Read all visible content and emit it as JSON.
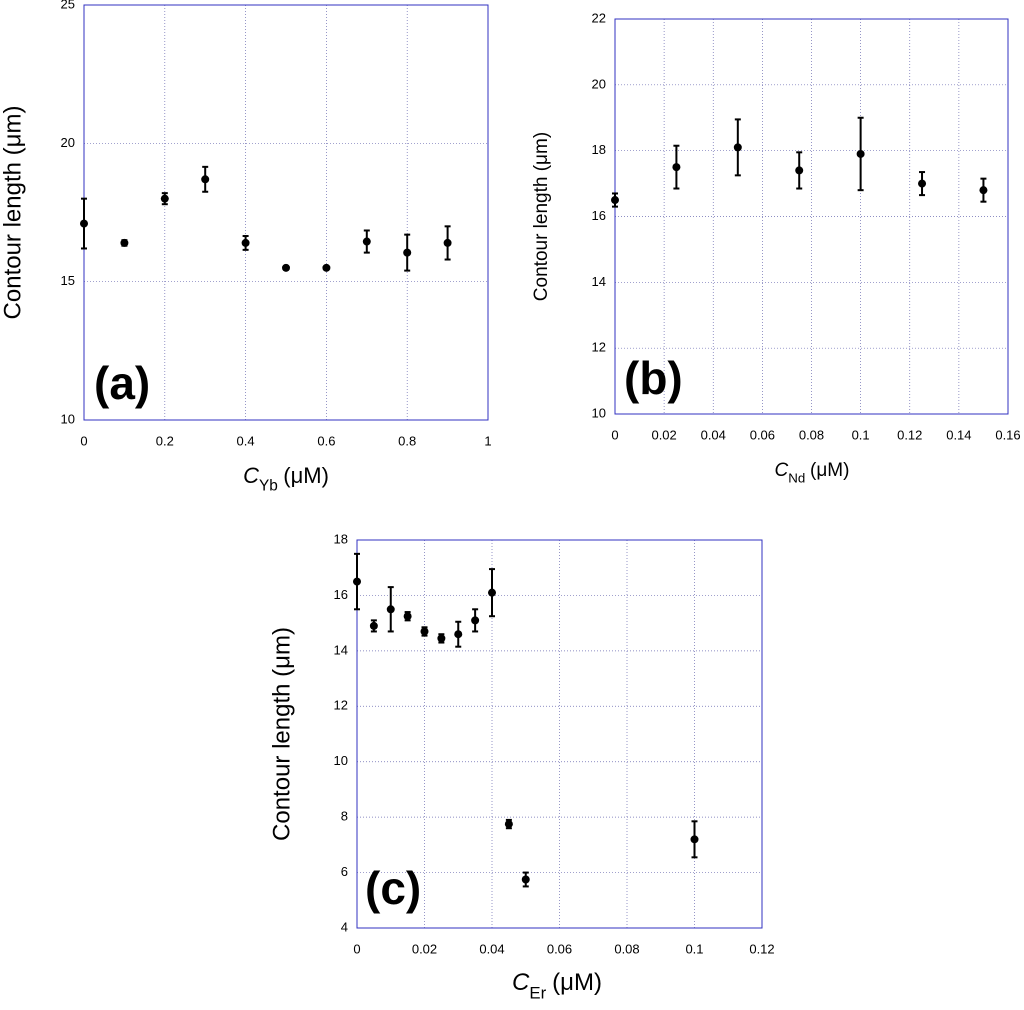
{
  "chart_data": [
    {
      "type": "errorscatter",
      "panel_label": "(a)",
      "ylabel": "Contour length (μm)",
      "xlabel": {
        "symbol": "C",
        "subscript": "Yb",
        "unit": "(μM)"
      },
      "x": [
        0,
        0.1,
        0.2,
        0.3,
        0.4,
        0.5,
        0.6,
        0.7,
        0.8,
        0.9
      ],
      "values": [
        17.1,
        16.4,
        18.0,
        18.7,
        16.4,
        15.5,
        15.5,
        16.45,
        16.05,
        16.4
      ],
      "errors": [
        0.9,
        0.1,
        0.2,
        0.45,
        0.25,
        0,
        0,
        0.4,
        0.65,
        0.6
      ],
      "color": "#000000",
      "xlim": [
        0,
        1
      ],
      "xticks": [
        0,
        0.2,
        0.4,
        0.6,
        0.8,
        1
      ],
      "ylim": [
        10,
        25
      ],
      "yticks": [
        10,
        15,
        20,
        25
      ],
      "grid": true
    },
    {
      "type": "errorscatter",
      "panel_label": "(b)",
      "ylabel": "Contour length (μm)",
      "xlabel": {
        "symbol": "C",
        "subscript": "Nd",
        "unit": "(μM)"
      },
      "x": [
        0,
        0.025,
        0.05,
        0.075,
        0.1,
        0.125,
        0.15
      ],
      "values": [
        16.5,
        17.5,
        18.1,
        17.4,
        17.9,
        17.0,
        16.8
      ],
      "errors": [
        0.2,
        0.65,
        0.85,
        0.55,
        1.1,
        0.35,
        0.35
      ],
      "color": "#000000",
      "xlim": [
        0,
        0.16
      ],
      "xticks": [
        0,
        0.02,
        0.04,
        0.06,
        0.08,
        0.1,
        0.12,
        0.14,
        0.16
      ],
      "ylim": [
        10,
        22
      ],
      "yticks": [
        10,
        12,
        14,
        16,
        18,
        20,
        22
      ],
      "grid": true
    },
    {
      "type": "errorscatter",
      "panel_label": "(c)",
      "ylabel": "Contour length (μm)",
      "xlabel": {
        "symbol": "C",
        "subscript": "Er",
        "unit": "(μM)"
      },
      "x": [
        0,
        0.005,
        0.01,
        0.015,
        0.02,
        0.025,
        0.03,
        0.035,
        0.04,
        0.045,
        0.05,
        0.1
      ],
      "values": [
        16.5,
        14.9,
        15.5,
        15.25,
        14.7,
        14.45,
        14.6,
        15.1,
        16.1,
        7.75,
        5.75,
        7.2
      ],
      "errors": [
        1.0,
        0.2,
        0.8,
        0.15,
        0.15,
        0.15,
        0.45,
        0.4,
        0.85,
        0.15,
        0.25,
        0.65
      ],
      "color": "#000000",
      "xlim": [
        0,
        0.12
      ],
      "xticks": [
        0,
        0.02,
        0.04,
        0.06,
        0.08,
        0.1,
        0.12
      ],
      "ylim": [
        4,
        18
      ],
      "yticks": [
        4,
        6,
        8,
        10,
        12,
        14,
        16,
        18
      ],
      "grid": true
    }
  ]
}
